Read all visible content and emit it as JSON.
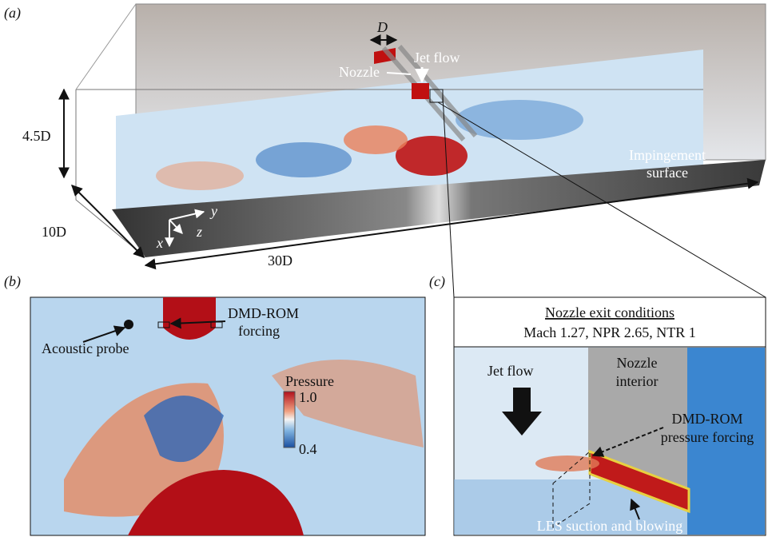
{
  "panel_a": {
    "label": "(a)",
    "diameter": "D",
    "jet_flow": "Jet flow",
    "nozzle": "Nozzle",
    "height": "4.5D",
    "depth": "10D",
    "length": "30D",
    "surface": [
      "Impingement",
      "surface"
    ],
    "axes": {
      "y": "y",
      "z": "z",
      "x": "x"
    }
  },
  "panel_b": {
    "label": "(b)",
    "forcing": [
      "DMD-ROM",
      "forcing"
    ],
    "probe": "Acoustic probe",
    "colorbar": {
      "title": "Pressure",
      "max": "1.0",
      "min": "0.4"
    }
  },
  "panel_c": {
    "label": "(c)",
    "header": {
      "title": "Nozzle exit conditions",
      "conditions": "Mach 1.27, NPR 2.65, NTR 1"
    },
    "jet_flow": "Jet flow",
    "interior": [
      "Nozzle",
      "interior"
    ],
    "forcing": [
      "DMD-ROM",
      "pressure forcing"
    ],
    "les": "LES suction and blowing"
  }
}
